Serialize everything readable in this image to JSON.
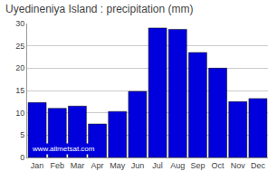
{
  "chart_data": {
    "type": "bar",
    "title": "Uyedineniya Island : precipitation (mm)",
    "categories": [
      "Jan",
      "Feb",
      "Mar",
      "Apr",
      "May",
      "Jun",
      "Jul",
      "Aug",
      "Sep",
      "Oct",
      "Nov",
      "Dec"
    ],
    "values": [
      12.3,
      11.0,
      11.5,
      7.5,
      10.3,
      14.8,
      29.0,
      28.7,
      23.5,
      20.0,
      12.5,
      13.2
    ],
    "color": "#0000dd",
    "ylim": [
      0,
      30
    ],
    "yticks": [
      0,
      5,
      10,
      15,
      20,
      25,
      30
    ],
    "grid": true,
    "annotations": [
      "www.allmetsat.com"
    ]
  }
}
